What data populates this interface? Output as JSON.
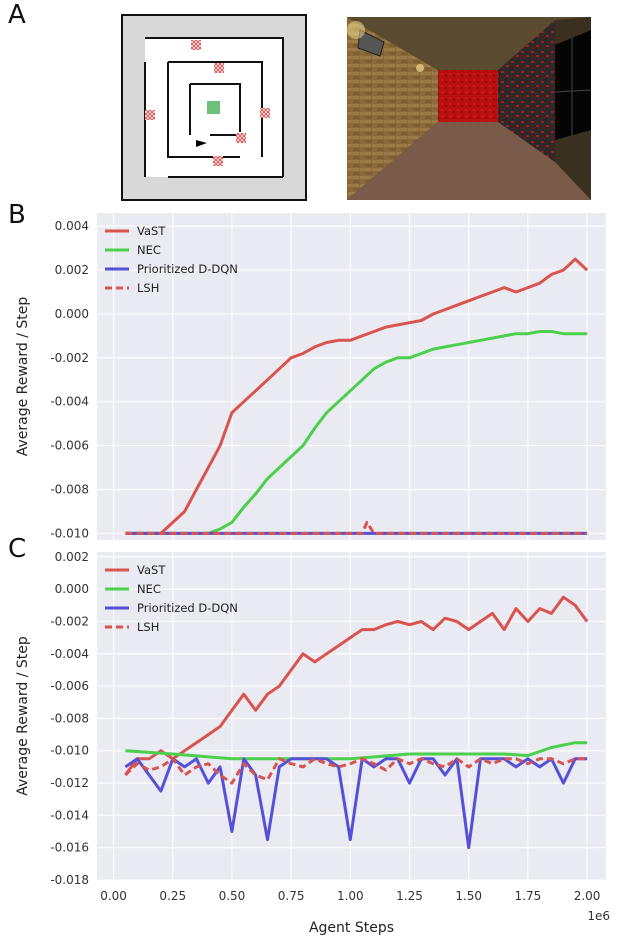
{
  "panels": {
    "a_letter": "A",
    "b_letter": "B",
    "c_letter": "C"
  },
  "colors": {
    "VaST": "#d9534f",
    "NEC": "#4ccf4c",
    "Prioritized D-DQN": "#5550d8",
    "LSH": "#d9534f",
    "plot_bg": "#eaeaf2",
    "grid": "#ffffff"
  },
  "maze": {
    "wall_color": "#111111",
    "floor_color": "#ffffff",
    "outside_color": "#d8d8d8",
    "goal_color": "#6cc07a",
    "hazard_color": "#e05050",
    "agent_color": "#000000"
  },
  "first_person_view": {
    "wall_texture": "brick",
    "far_wall_color": "#c01010",
    "floor_color": "#7a5a48"
  },
  "chart_data": [
    {
      "type": "line",
      "panel": "B",
      "xlabel": "",
      "ylabel": "Average Reward / Step",
      "x_ticks": [
        0.0,
        0.25,
        0.5,
        0.75,
        1.0,
        1.25,
        1.5,
        1.75,
        2.0
      ],
      "x_tick_labels": [
        "0.00",
        "0.25",
        "0.50",
        "0.75",
        "1.00",
        "1.25",
        "1.50",
        "1.75",
        "2.00"
      ],
      "xlim": [
        -0.07,
        2.08
      ],
      "ylim": [
        -0.0103,
        0.0046
      ],
      "y_ticks": [
        -0.01,
        -0.008,
        -0.006,
        -0.004,
        -0.002,
        0.0,
        0.002,
        0.004
      ],
      "y_tick_labels": [
        "-0.010",
        "-0.008",
        "-0.006",
        "-0.004",
        "-0.002",
        "0.000",
        "0.002",
        "0.004"
      ],
      "grid": true,
      "legend_placement": "top-left",
      "legend": [
        "VaST",
        "NEC",
        "Prioritized D-DQN",
        "LSH"
      ],
      "series": [
        {
          "name": "VaST",
          "style": "solid",
          "x": [
            0.05,
            0.1,
            0.15,
            0.2,
            0.25,
            0.3,
            0.35,
            0.4,
            0.45,
            0.5,
            0.55,
            0.6,
            0.65,
            0.7,
            0.75,
            0.8,
            0.85,
            0.9,
            0.95,
            1.0,
            1.05,
            1.1,
            1.15,
            1.2,
            1.25,
            1.3,
            1.35,
            1.4,
            1.45,
            1.5,
            1.55,
            1.6,
            1.65,
            1.7,
            1.75,
            1.8,
            1.85,
            1.9,
            1.95,
            2.0
          ],
          "y": [
            -0.01,
            -0.01,
            -0.01,
            -0.01,
            -0.0095,
            -0.009,
            -0.008,
            -0.007,
            -0.006,
            -0.0045,
            -0.004,
            -0.0035,
            -0.003,
            -0.0025,
            -0.002,
            -0.0018,
            -0.0015,
            -0.0013,
            -0.0012,
            -0.0012,
            -0.001,
            -0.0008,
            -0.0006,
            -0.0005,
            -0.0004,
            -0.0003,
            0.0,
            0.0002,
            0.0004,
            0.0006,
            0.0008,
            0.001,
            0.0012,
            0.001,
            0.0012,
            0.0014,
            0.0018,
            0.002,
            0.0025,
            0.002
          ]
        },
        {
          "name": "NEC",
          "style": "solid",
          "x": [
            0.05,
            0.1,
            0.15,
            0.2,
            0.25,
            0.3,
            0.35,
            0.4,
            0.45,
            0.5,
            0.55,
            0.6,
            0.65,
            0.7,
            0.75,
            0.8,
            0.85,
            0.9,
            0.95,
            1.0,
            1.05,
            1.1,
            1.15,
            1.2,
            1.25,
            1.3,
            1.35,
            1.4,
            1.45,
            1.5,
            1.55,
            1.6,
            1.65,
            1.7,
            1.75,
            1.8,
            1.85,
            1.9,
            1.95,
            2.0
          ],
          "y": [
            -0.01,
            -0.01,
            -0.01,
            -0.01,
            -0.01,
            -0.01,
            -0.01,
            -0.01,
            -0.0098,
            -0.0095,
            -0.0088,
            -0.0082,
            -0.0075,
            -0.007,
            -0.0065,
            -0.006,
            -0.0052,
            -0.0045,
            -0.004,
            -0.0035,
            -0.003,
            -0.0025,
            -0.0022,
            -0.002,
            -0.002,
            -0.0018,
            -0.0016,
            -0.0015,
            -0.0014,
            -0.0013,
            -0.0012,
            -0.0011,
            -0.001,
            -0.0009,
            -0.0009,
            -0.0008,
            -0.0008,
            -0.0009,
            -0.0009,
            -0.0009
          ]
        },
        {
          "name": "Prioritized D-DQN",
          "style": "solid",
          "x": [
            0.05,
            0.25,
            0.5,
            0.75,
            1.0,
            1.25,
            1.5,
            1.75,
            2.0
          ],
          "y": [
            -0.01,
            -0.01,
            -0.01,
            -0.01,
            -0.01,
            -0.01,
            -0.01,
            -0.01,
            -0.01
          ]
        },
        {
          "name": "LSH",
          "style": "dashed",
          "x": [
            0.05,
            0.25,
            0.5,
            0.75,
            1.0,
            1.05,
            1.07,
            1.1,
            1.25,
            1.5,
            1.75,
            2.0
          ],
          "y": [
            -0.01,
            -0.01,
            -0.01,
            -0.01,
            -0.01,
            -0.01,
            -0.0095,
            -0.01,
            -0.01,
            -0.01,
            -0.01,
            -0.01
          ]
        }
      ]
    },
    {
      "type": "line",
      "panel": "C",
      "xlabel": "Agent Steps",
      "x_scale_label": "1e6",
      "ylabel": "Average Reward / Step",
      "x_ticks": [
        0.0,
        0.25,
        0.5,
        0.75,
        1.0,
        1.25,
        1.5,
        1.75,
        2.0
      ],
      "x_tick_labels": [
        "0.00",
        "0.25",
        "0.50",
        "0.75",
        "1.00",
        "1.25",
        "1.50",
        "1.75",
        "2.00"
      ],
      "xlim": [
        -0.07,
        2.08
      ],
      "ylim": [
        -0.018,
        0.0023
      ],
      "y_ticks": [
        -0.018,
        -0.016,
        -0.014,
        -0.012,
        -0.01,
        -0.008,
        -0.006,
        -0.004,
        -0.002,
        0.0,
        0.002
      ],
      "y_tick_labels": [
        "-0.018",
        "-0.016",
        "-0.014",
        "-0.012",
        "-0.010",
        "-0.008",
        "-0.006",
        "-0.004",
        "-0.002",
        "0.000",
        "0.002"
      ],
      "grid": true,
      "legend_placement": "top-left",
      "legend": [
        "VaST",
        "NEC",
        "Prioritized D-DQN",
        "LSH"
      ],
      "series": [
        {
          "name": "VaST",
          "style": "solid",
          "x": [
            0.05,
            0.1,
            0.15,
            0.2,
            0.25,
            0.3,
            0.35,
            0.4,
            0.45,
            0.5,
            0.55,
            0.6,
            0.65,
            0.7,
            0.75,
            0.8,
            0.85,
            0.9,
            0.95,
            1.0,
            1.05,
            1.1,
            1.15,
            1.2,
            1.25,
            1.3,
            1.35,
            1.4,
            1.45,
            1.5,
            1.55,
            1.6,
            1.65,
            1.7,
            1.75,
            1.8,
            1.85,
            1.9,
            1.95,
            2.0
          ],
          "y": [
            -0.0115,
            -0.0105,
            -0.0105,
            -0.01,
            -0.0105,
            -0.01,
            -0.0095,
            -0.009,
            -0.0085,
            -0.0075,
            -0.0065,
            -0.0075,
            -0.0065,
            -0.006,
            -0.005,
            -0.004,
            -0.0045,
            -0.004,
            -0.0035,
            -0.003,
            -0.0025,
            -0.0025,
            -0.0022,
            -0.002,
            -0.0022,
            -0.002,
            -0.0025,
            -0.0018,
            -0.002,
            -0.0025,
            -0.002,
            -0.0015,
            -0.0025,
            -0.0012,
            -0.002,
            -0.0012,
            -0.0015,
            -0.0005,
            -0.001,
            -0.002
          ]
        },
        {
          "name": "NEC",
          "style": "solid",
          "x": [
            0.05,
            0.25,
            0.5,
            0.75,
            1.0,
            1.25,
            1.5,
            1.65,
            1.75,
            1.85,
            1.95,
            2.0
          ],
          "y": [
            -0.01,
            -0.0102,
            -0.0105,
            -0.0105,
            -0.0105,
            -0.0102,
            -0.0102,
            -0.0102,
            -0.0103,
            -0.0098,
            -0.0095,
            -0.0095
          ]
        },
        {
          "name": "Prioritized D-DQN",
          "style": "solid",
          "x": [
            0.05,
            0.1,
            0.15,
            0.2,
            0.25,
            0.3,
            0.35,
            0.4,
            0.45,
            0.5,
            0.55,
            0.6,
            0.65,
            0.7,
            0.75,
            0.8,
            0.85,
            0.9,
            0.95,
            1.0,
            1.05,
            1.1,
            1.15,
            1.2,
            1.25,
            1.3,
            1.35,
            1.4,
            1.45,
            1.5,
            1.55,
            1.6,
            1.65,
            1.7,
            1.75,
            1.8,
            1.85,
            1.9,
            1.95,
            2.0
          ],
          "y": [
            -0.011,
            -0.0105,
            -0.0115,
            -0.0125,
            -0.0105,
            -0.011,
            -0.0105,
            -0.012,
            -0.011,
            -0.015,
            -0.0105,
            -0.0115,
            -0.0155,
            -0.011,
            -0.0105,
            -0.0105,
            -0.0105,
            -0.0105,
            -0.011,
            -0.0155,
            -0.0105,
            -0.011,
            -0.0105,
            -0.0105,
            -0.012,
            -0.0105,
            -0.0105,
            -0.0115,
            -0.0105,
            -0.016,
            -0.0105,
            -0.0105,
            -0.0105,
            -0.011,
            -0.0105,
            -0.011,
            -0.0105,
            -0.012,
            -0.0105,
            -0.0105
          ]
        },
        {
          "name": "LSH",
          "style": "dashed",
          "x": [
            0.05,
            0.1,
            0.15,
            0.2,
            0.25,
            0.3,
            0.35,
            0.4,
            0.45,
            0.5,
            0.55,
            0.6,
            0.65,
            0.7,
            0.75,
            0.8,
            0.85,
            0.9,
            0.95,
            1.0,
            1.05,
            1.1,
            1.15,
            1.2,
            1.25,
            1.3,
            1.35,
            1.4,
            1.45,
            1.5,
            1.55,
            1.6,
            1.65,
            1.7,
            1.75,
            1.8,
            1.85,
            1.9,
            1.95,
            2.0
          ],
          "y": [
            -0.0115,
            -0.0108,
            -0.0112,
            -0.011,
            -0.0105,
            -0.0115,
            -0.011,
            -0.0108,
            -0.0115,
            -0.012,
            -0.0108,
            -0.0115,
            -0.0118,
            -0.0105,
            -0.0108,
            -0.011,
            -0.0105,
            -0.0108,
            -0.011,
            -0.0108,
            -0.0105,
            -0.0108,
            -0.0112,
            -0.0105,
            -0.0108,
            -0.0105,
            -0.0108,
            -0.011,
            -0.0105,
            -0.011,
            -0.0105,
            -0.0108,
            -0.0105,
            -0.0105,
            -0.0108,
            -0.0105,
            -0.0105,
            -0.0108,
            -0.0105,
            -0.0105
          ]
        }
      ]
    }
  ]
}
